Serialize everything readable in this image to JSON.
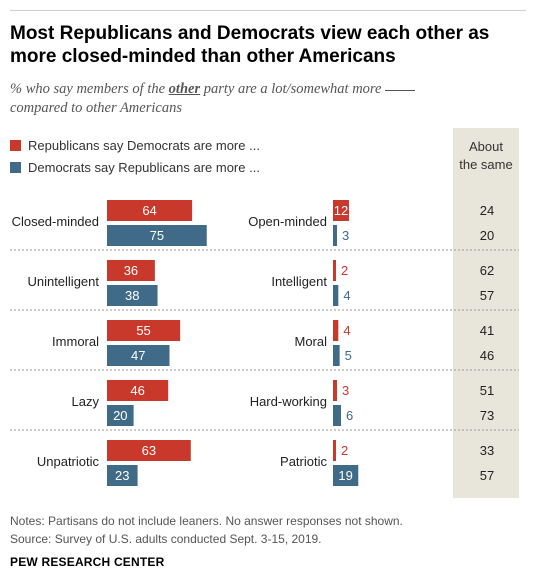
{
  "header": {
    "title_line1": "Most Republicans and Democrats view each other as",
    "title_line2": "more closed-minded than other Americans",
    "subtitle_pre": "% who say members of the ",
    "subtitle_em": "other",
    "subtitle_post": " party are a lot/somewhat more",
    "subtitle_line2": "compared to other Americans"
  },
  "legend": {
    "rep": "Republicans say Democrats are more ...",
    "dem": "Democrats say Republicans are more ..."
  },
  "colors": {
    "rep": "#c8382b",
    "dem": "#3f6b89",
    "same_bg": "#e8e5da"
  },
  "chart_data": {
    "type": "bar",
    "series": [
      {
        "name": "Republicans say Democrats are more ..."
      },
      {
        "name": "Democrats say Republicans are more ..."
      }
    ],
    "same_header_line1": "About",
    "same_header_line2": "the same",
    "rows": [
      {
        "neg": "Closed-minded",
        "pos": "Open-minded",
        "rep_neg": 64,
        "dem_neg": 75,
        "rep_pos": 12,
        "dem_pos": 3,
        "rep_same": 24,
        "dem_same": 20
      },
      {
        "neg": "Unintelligent",
        "pos": "Intelligent",
        "rep_neg": 36,
        "dem_neg": 38,
        "rep_pos": 2,
        "dem_pos": 4,
        "rep_same": 62,
        "dem_same": 57
      },
      {
        "neg": "Immoral",
        "pos": "Moral",
        "rep_neg": 55,
        "dem_neg": 47,
        "rep_pos": 4,
        "dem_pos": 5,
        "rep_same": 41,
        "dem_same": 46
      },
      {
        "neg": "Lazy",
        "pos": "Hard-working",
        "rep_neg": 46,
        "dem_neg": 20,
        "rep_pos": 3,
        "dem_pos": 6,
        "rep_same": 51,
        "dem_same": 73
      },
      {
        "neg": "Unpatriotic",
        "pos": "Patriotic",
        "rep_neg": 63,
        "dem_neg": 23,
        "rep_pos": 2,
        "dem_pos": 19,
        "rep_same": 33,
        "dem_same": 57
      }
    ]
  },
  "footer": {
    "note1": "Notes: Partisans do not include leaners. No answer responses not shown.",
    "note2": "Source: Survey of U.S. adults conducted Sept. 3-15, 2019.",
    "brand": "PEW RESEARCH CENTER"
  }
}
